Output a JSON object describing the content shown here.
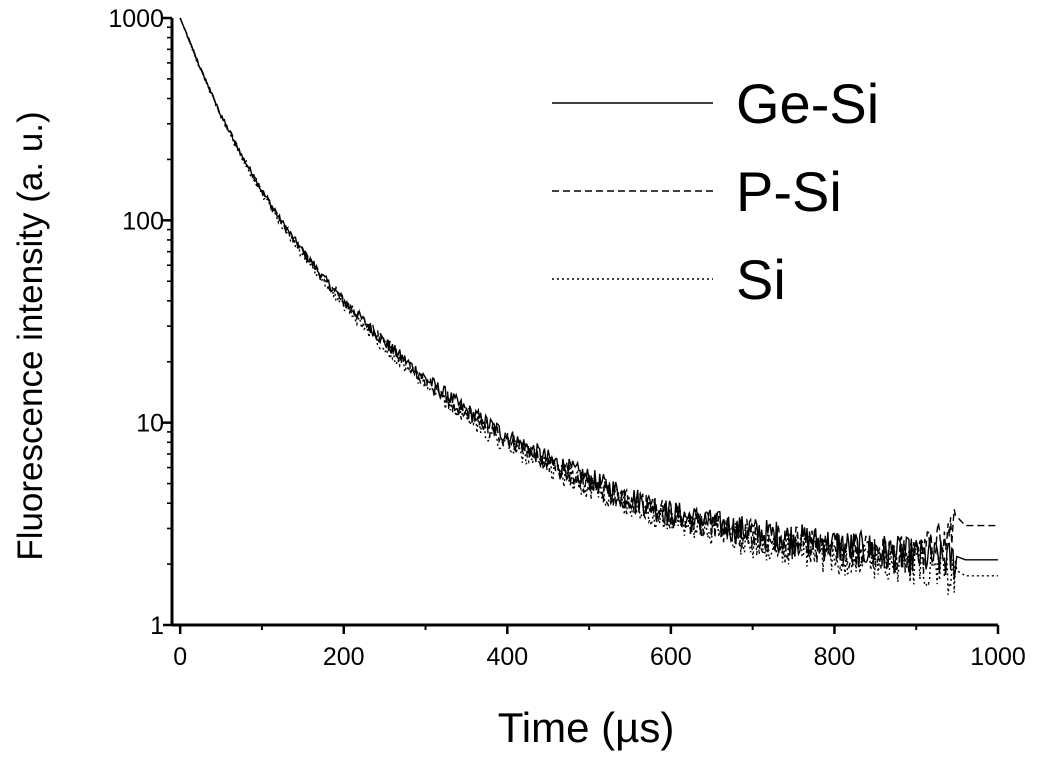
{
  "chart_data": {
    "type": "line",
    "title": "",
    "xlabel": "Time (µs)",
    "ylabel": "Fluorescence intensity (a. u.)",
    "xlim": [
      -10,
      1000
    ],
    "ylim": [
      1,
      1000
    ],
    "yscale": "log",
    "x_ticks": [
      0,
      200,
      400,
      600,
      800,
      1000
    ],
    "x_tick_labels": [
      "0",
      "200",
      "400",
      "600",
      "800",
      "1000"
    ],
    "y_ticks": [
      1,
      10,
      100,
      1000
    ],
    "y_tick_labels": [
      "1",
      "10",
      "100",
      "1000"
    ],
    "grid": false,
    "legend_position": "top-right",
    "series": [
      {
        "name": "Ge-Si",
        "line_style": "solid",
        "x": [
          0,
          25,
          50,
          75,
          100,
          125,
          150,
          175,
          200,
          250,
          300,
          350,
          400,
          450,
          500,
          550,
          600,
          650,
          700,
          750,
          800,
          850,
          900,
          950,
          1000
        ],
        "values": [
          1000,
          560,
          330,
          210,
          140,
          97,
          70,
          52,
          40,
          25,
          16.5,
          11.5,
          8.6,
          6.6,
          5.3,
          4.3,
          3.6,
          3.2,
          2.9,
          2.7,
          2.5,
          2.35,
          2.2,
          2.1,
          2.1
        ]
      },
      {
        "name": "P-Si",
        "line_style": "dashed",
        "x": [
          0,
          25,
          50,
          75,
          100,
          125,
          150,
          175,
          200,
          250,
          300,
          350,
          400,
          450,
          500,
          550,
          600,
          650,
          700,
          750,
          800,
          850,
          900,
          950,
          1000
        ],
        "values": [
          1000,
          560,
          330,
          210,
          140,
          97,
          70,
          52,
          40,
          25,
          16,
          11,
          8.2,
          6.3,
          5.0,
          4.1,
          3.5,
          3.1,
          2.8,
          2.6,
          2.4,
          2.3,
          2.2,
          3.1,
          3.1
        ]
      },
      {
        "name": "Si",
        "line_style": "dotted",
        "x": [
          0,
          25,
          50,
          75,
          100,
          125,
          150,
          175,
          200,
          250,
          300,
          350,
          400,
          450,
          500,
          550,
          600,
          650,
          700,
          750,
          800,
          850,
          900,
          950,
          1000
        ],
        "values": [
          1000,
          555,
          325,
          205,
          136,
          94,
          67,
          50,
          38,
          23.5,
          15.5,
          10.5,
          7.8,
          6.0,
          4.8,
          3.9,
          3.3,
          2.9,
          2.6,
          2.4,
          2.2,
          2.1,
          2.0,
          1.75,
          1.75
        ]
      }
    ]
  }
}
